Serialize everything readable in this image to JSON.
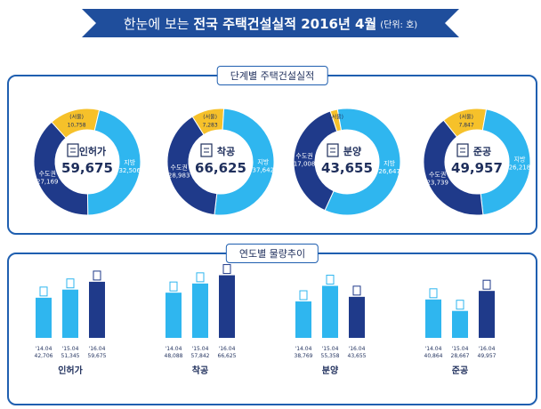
{
  "header": {
    "title_prefix": "한눈에 보는",
    "title_main": "전국 주택건설실적 2016년 4월",
    "unit": "(단위: 호)"
  },
  "colors": {
    "navy": "#1f3a8a",
    "light_blue": "#2fb6ef",
    "yellow": "#f6c12a",
    "ribbon": "#1f4e9c",
    "border": "#1f5fb0"
  },
  "sections": {
    "stage_label": "단계별 주택건설실적",
    "trend_label": "연도별 물량추이"
  },
  "chart_data": [
    {
      "type": "donut",
      "center_label": "인허가",
      "total": "59,675",
      "icon": "document-pen-icon",
      "slices": [
        {
          "label": "수도권",
          "value": "27,169",
          "color": "#1f3a8a"
        },
        {
          "label": "(서울)",
          "value": "10,758",
          "color": "#f6c12a"
        },
        {
          "label": "지방",
          "value": "32,506",
          "color": "#2fb6ef"
        }
      ],
      "values": [
        27169,
        10758,
        32506
      ]
    },
    {
      "type": "donut",
      "center_label": "착공",
      "total": "66,625",
      "icon": "crane-icon",
      "slices": [
        {
          "label": "수도권",
          "value": "28,983",
          "color": "#1f3a8a"
        },
        {
          "label": "(서울)",
          "value": "7,283",
          "color": "#f6c12a"
        },
        {
          "label": "지방",
          "value": "37,642",
          "color": "#2fb6ef"
        }
      ],
      "values": [
        28983,
        7283,
        37642
      ]
    },
    {
      "type": "donut",
      "center_label": "분양",
      "total": "43,655",
      "icon": "sale-sign-icon",
      "slices": [
        {
          "label": "수도권",
          "value": "17,008",
          "color": "#1f3a8a"
        },
        {
          "label": "(서울)",
          "value": "",
          "color": "#f6c12a"
        },
        {
          "label": "지방",
          "value": "26,647",
          "color": "#2fb6ef"
        }
      ],
      "values": [
        17008,
        1000,
        26647
      ]
    },
    {
      "type": "donut",
      "center_label": "준공",
      "total": "49,957",
      "icon": "buildings-icon",
      "slices": [
        {
          "label": "수도권",
          "value": "23,739",
          "color": "#1f3a8a"
        },
        {
          "label": "(서울)",
          "value": "7,847",
          "color": "#f6c12a"
        },
        {
          "label": "지방",
          "value": "26,218",
          "color": "#2fb6ef"
        }
      ],
      "values": [
        23739,
        7847,
        26218
      ]
    },
    {
      "type": "bar",
      "title": "인허가",
      "categories": [
        "'14.04",
        "'15.04",
        "'16.04"
      ],
      "values": [
        42706,
        51345,
        59675
      ],
      "value_labels": [
        "42,706",
        "51,345",
        "59,675"
      ]
    },
    {
      "type": "bar",
      "title": "착공",
      "categories": [
        "'14.04",
        "'15.04",
        "'16.04"
      ],
      "values": [
        48088,
        57842,
        66625
      ],
      "value_labels": [
        "48,088",
        "57,842",
        "66,625"
      ]
    },
    {
      "type": "bar",
      "title": "분양",
      "categories": [
        "'14.04",
        "'15.04",
        "'16.04"
      ],
      "values": [
        38769,
        55358,
        43655
      ],
      "value_labels": [
        "38,769",
        "55,358",
        "43,655"
      ]
    },
    {
      "type": "bar",
      "title": "준공",
      "categories": [
        "'14.04",
        "'15.04",
        "'16.04"
      ],
      "values": [
        40864,
        28667,
        49957
      ],
      "value_labels": [
        "40,864",
        "28,667",
        "49,957"
      ]
    }
  ]
}
